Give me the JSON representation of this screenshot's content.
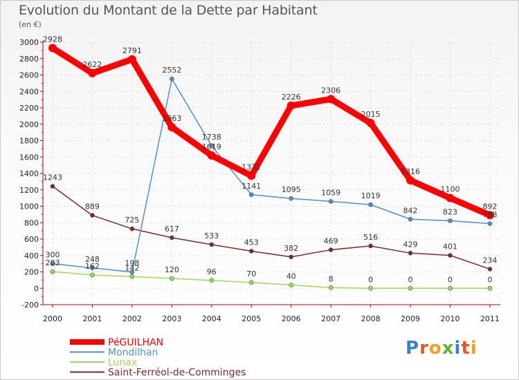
{
  "chart_data": {
    "type": "line",
    "title": "Evolution du Montant de la Dette par Habitant",
    "unit_label": "(en €)",
    "x": [
      "2000",
      "2001",
      "2002",
      "2003",
      "2004",
      "2005",
      "2006",
      "2007",
      "2008",
      "2009",
      "2010",
      "2011"
    ],
    "ylim": [
      -200,
      3000
    ],
    "yticks": [
      -200,
      0,
      200,
      400,
      600,
      800,
      1000,
      1200,
      1400,
      1600,
      1800,
      2000,
      2200,
      2400,
      2600,
      2800,
      3000
    ],
    "grid": true,
    "legend_position": "bottom-left",
    "series": [
      {
        "name": "PéGUILHAN",
        "color": "#ff0000",
        "values": [
          2928,
          2622,
          2791,
          1963,
          1619,
          1372,
          2226,
          2306,
          2015,
          1316,
          1100,
          892
        ]
      },
      {
        "name": "Mondilhan",
        "color": "#4f90c8",
        "values": [
          300,
          248,
          198,
          2552,
          1738,
          1141,
          1095,
          1059,
          1019,
          842,
          823,
          788
        ]
      },
      {
        "name": "Lunax",
        "color": "#99dd55",
        "values": [
          203,
          162,
          142,
          120,
          96,
          70,
          40,
          8,
          0,
          0,
          0,
          0
        ]
      },
      {
        "name": "Saint-Ferréol-de-Comminges",
        "color": "#7a2a2a",
        "values": [
          1243,
          889,
          725,
          617,
          533,
          453,
          382,
          469,
          516,
          429,
          401,
          234
        ]
      }
    ]
  },
  "logo": {
    "letters": [
      "P",
      "r",
      "o",
      "x",
      "i",
      "t",
      "i"
    ],
    "colors": [
      "#3a7fd0",
      "#e8542a",
      "#f0a020",
      "#5cb82e",
      "#3a7fd0",
      "#e8542a",
      "#f0a020"
    ]
  }
}
